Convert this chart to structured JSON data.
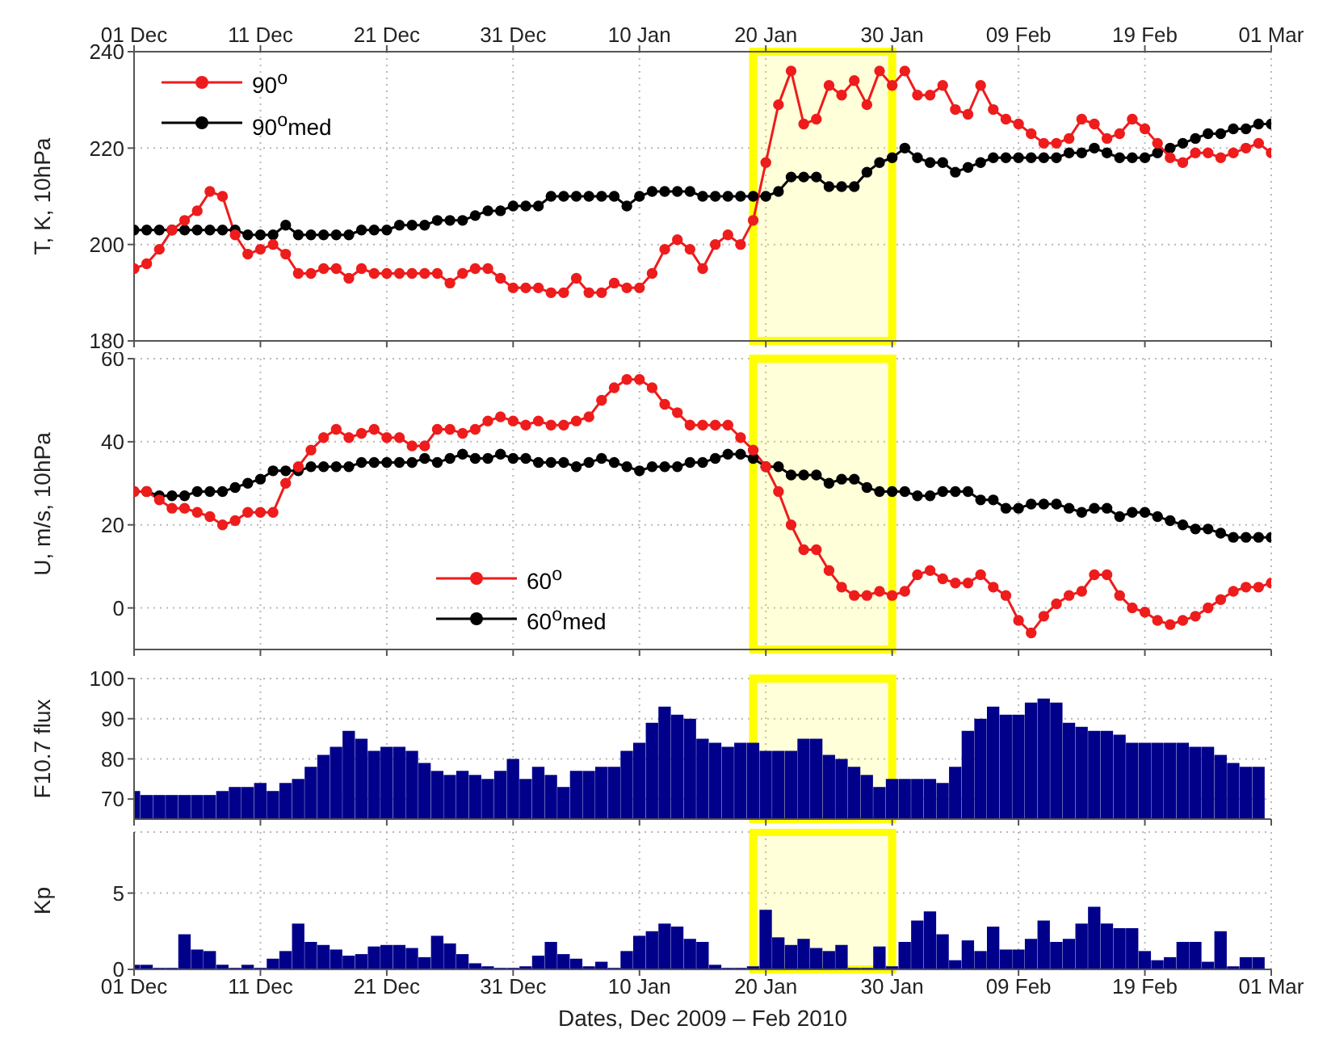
{
  "chart_data": [
    {
      "type": "line",
      "ylabel": "T, K, 10hPa",
      "grid": true,
      "marker": "circle",
      "legend": "top left",
      "tick_labels": "y",
      "x": [
        "2009-12-01",
        "2009-12-02",
        "2009-12-03",
        "2009-12-04",
        "2009-12-05",
        "2009-12-06",
        "2009-12-07",
        "2009-12-08",
        "2009-12-09",
        "2009-12-10",
        "2009-12-11",
        "2009-12-12",
        "2009-12-13",
        "2009-12-14",
        "2009-12-15",
        "2009-12-16",
        "2009-12-17",
        "2009-12-18",
        "2009-12-19",
        "2009-12-20",
        "2009-12-21",
        "2009-12-22",
        "2009-12-23",
        "2009-12-24",
        "2009-12-25",
        "2009-12-26",
        "2009-12-27",
        "2009-12-28",
        "2009-12-29",
        "2009-12-30",
        "2009-12-31",
        "2010-01-01",
        "2010-01-02",
        "2010-01-03",
        "2010-01-04",
        "2010-01-05",
        "2010-01-06",
        "2010-01-07",
        "2010-01-08",
        "2010-01-09",
        "2010-01-10",
        "2010-01-11",
        "2010-01-12",
        "2010-01-13",
        "2010-01-14",
        "2010-01-15",
        "2010-01-16",
        "2010-01-17",
        "2010-01-18",
        "2010-01-19",
        "2010-01-20",
        "2010-01-21",
        "2010-01-22",
        "2010-01-23",
        "2010-01-24",
        "2010-01-25",
        "2010-01-26",
        "2010-01-27",
        "2010-01-28",
        "2010-01-29",
        "2010-01-30",
        "2010-01-31",
        "2010-02-01",
        "2010-02-02",
        "2010-02-03",
        "2010-02-04",
        "2010-02-05",
        "2010-02-06",
        "2010-02-07",
        "2010-02-08",
        "2010-02-09",
        "2010-02-10",
        "2010-02-11",
        "2010-02-12",
        "2010-02-13",
        "2010-02-14",
        "2010-02-15",
        "2010-02-16",
        "2010-02-17",
        "2010-02-18",
        "2010-02-19",
        "2010-02-20",
        "2010-02-21",
        "2010-02-22",
        "2010-02-23",
        "2010-02-24",
        "2010-02-25",
        "2010-02-26",
        "2010-02-27",
        "2010-02-28",
        "2010-03-01"
      ],
      "series": [
        {
          "name": "90$^{o}$",
          "color": "#ee1c1c",
          "values": [
            195,
            196,
            199,
            203,
            205,
            207,
            211,
            210,
            202,
            198,
            199,
            200,
            198,
            194,
            194,
            195,
            195,
            193,
            195,
            194,
            194,
            194,
            194,
            194,
            194,
            192,
            194,
            195,
            195,
            193,
            191,
            191,
            191,
            190,
            190,
            193,
            190,
            190,
            192,
            191,
            191,
            194,
            199,
            201,
            199,
            195,
            200,
            202,
            200,
            205,
            217,
            229,
            236,
            225,
            226,
            233,
            231,
            234,
            229,
            236,
            233,
            236,
            231,
            231,
            233,
            228,
            227,
            233,
            228,
            226,
            225,
            223,
            221,
            221,
            222,
            226,
            225,
            222,
            223,
            226,
            224,
            221,
            218,
            217,
            219,
            219,
            218,
            219,
            220,
            221,
            219
          ]
        },
        {
          "name": "90$^{o}$med",
          "color": "#000000",
          "values": [
            203,
            203,
            203,
            203,
            203,
            203,
            203,
            203,
            203,
            202,
            202,
            202,
            204,
            202,
            202,
            202,
            202,
            202,
            203,
            203,
            203,
            204,
            204,
            204,
            205,
            205,
            205,
            206,
            207,
            207,
            208,
            208,
            208,
            210,
            210,
            210,
            210,
            210,
            210,
            208,
            210,
            211,
            211,
            211,
            211,
            210,
            210,
            210,
            210,
            210,
            210,
            211,
            214,
            214,
            214,
            212,
            212,
            212,
            215,
            217,
            218,
            220,
            218,
            217,
            217,
            215,
            216,
            217,
            218,
            218,
            218,
            218,
            218,
            218,
            219,
            219,
            220,
            219,
            218,
            218,
            218,
            219,
            220,
            221,
            222,
            223,
            223,
            224,
            224,
            225,
            225
          ]
        }
      ],
      "xlim": [
        "2009-12-01",
        "2010-03-01"
      ],
      "xticks": [
        {
          "value": "2009-12-01",
          "label": null
        },
        {
          "value": "2009-12-11",
          "label": null
        },
        {
          "value": "2009-12-21",
          "label": null
        },
        {
          "value": "2009-12-31",
          "label": null
        },
        {
          "value": "2010-01-10",
          "label": null
        },
        {
          "value": "2010-01-20",
          "label": null
        },
        {
          "value": "2010-01-30",
          "label": null
        },
        {
          "value": "2010-02-09",
          "label": null
        },
        {
          "value": "2010-02-19",
          "label": null
        },
        {
          "value": "2010-03-01",
          "label": null
        }
      ],
      "x2lim": [
        "2009-12-01",
        "2010-03-01"
      ],
      "x2ticks": [
        {
          "value": "2009-12-01",
          "label": "01 Dec"
        },
        {
          "value": "2009-12-11",
          "label": "11 Dec"
        },
        {
          "value": "2009-12-21",
          "label": "21 Dec"
        },
        {
          "value": "2009-12-31",
          "label": "31 Dec"
        },
        {
          "value": "2010-01-10",
          "label": "10 Jan"
        },
        {
          "value": "2010-01-20",
          "label": "20 Jan"
        },
        {
          "value": "2010-01-30",
          "label": "30 Jan"
        },
        {
          "value": "2010-02-09",
          "label": "09 Feb"
        },
        {
          "value": "2010-02-19",
          "label": "19 Feb"
        },
        {
          "value": "2010-03-01",
          "label": "01 Mar"
        }
      ],
      "ylim": [
        180,
        240
      ],
      "yticks": [
        180,
        200,
        220,
        240
      ],
      "bands": [
        {
          "axis": "x",
          "from": "2010-01-19",
          "to": "2010-01-30",
          "color": "#ffff00"
        }
      ]
    },
    {
      "type": "line",
      "ylabel": "U, m/s, 10hPa",
      "grid": true,
      "marker": "circle",
      "legend": "bottom left",
      "tick_labels": "y",
      "x": [
        "2009-12-01",
        "2009-12-02",
        "2009-12-03",
        "2009-12-04",
        "2009-12-05",
        "2009-12-06",
        "2009-12-07",
        "2009-12-08",
        "2009-12-09",
        "2009-12-10",
        "2009-12-11",
        "2009-12-12",
        "2009-12-13",
        "2009-12-14",
        "2009-12-15",
        "2009-12-16",
        "2009-12-17",
        "2009-12-18",
        "2009-12-19",
        "2009-12-20",
        "2009-12-21",
        "2009-12-22",
        "2009-12-23",
        "2009-12-24",
        "2009-12-25",
        "2009-12-26",
        "2009-12-27",
        "2009-12-28",
        "2009-12-29",
        "2009-12-30",
        "2009-12-31",
        "2010-01-01",
        "2010-01-02",
        "2010-01-03",
        "2010-01-04",
        "2010-01-05",
        "2010-01-06",
        "2010-01-07",
        "2010-01-08",
        "2010-01-09",
        "2010-01-10",
        "2010-01-11",
        "2010-01-12",
        "2010-01-13",
        "2010-01-14",
        "2010-01-15",
        "2010-01-16",
        "2010-01-17",
        "2010-01-18",
        "2010-01-19",
        "2010-01-20",
        "2010-01-21",
        "2010-01-22",
        "2010-01-23",
        "2010-01-24",
        "2010-01-25",
        "2010-01-26",
        "2010-01-27",
        "2010-01-28",
        "2010-01-29",
        "2010-01-30",
        "2010-01-31",
        "2010-02-01",
        "2010-02-02",
        "2010-02-03",
        "2010-02-04",
        "2010-02-05",
        "2010-02-06",
        "2010-02-07",
        "2010-02-08",
        "2010-02-09",
        "2010-02-10",
        "2010-02-11",
        "2010-02-12",
        "2010-02-13",
        "2010-02-14",
        "2010-02-15",
        "2010-02-16",
        "2010-02-17",
        "2010-02-18",
        "2010-02-19",
        "2010-02-20",
        "2010-02-21",
        "2010-02-22",
        "2010-02-23",
        "2010-02-24",
        "2010-02-25",
        "2010-02-26",
        "2010-02-27",
        "2010-02-28",
        "2010-03-01"
      ],
      "series": [
        {
          "name": "60$^{o}$",
          "color": "#ee1c1c",
          "values": [
            28,
            28,
            26,
            24,
            24,
            23,
            22,
            20,
            21,
            23,
            23,
            23,
            30,
            34,
            38,
            41,
            43,
            41,
            42,
            43,
            41,
            41,
            39,
            39,
            43,
            43,
            42,
            43,
            45,
            46,
            45,
            44,
            45,
            44,
            44,
            45,
            46,
            50,
            53,
            55,
            55,
            53,
            49,
            47,
            44,
            44,
            44,
            44,
            41,
            38,
            34,
            28,
            20,
            14,
            14,
            9,
            5,
            3,
            3,
            4,
            3,
            4,
            8,
            9,
            7,
            6,
            6,
            8,
            5,
            3,
            -3,
            -6,
            -2,
            1,
            3,
            4,
            8,
            8,
            3,
            0,
            -1,
            -3,
            -4,
            -3,
            -2,
            0,
            2,
            4,
            5,
            5,
            6
          ]
        },
        {
          "name": "60$^{o}$med",
          "color": "#000000",
          "values": [
            28,
            28,
            27,
            27,
            27,
            28,
            28,
            28,
            29,
            30,
            31,
            33,
            33,
            33,
            34,
            34,
            34,
            34,
            35,
            35,
            35,
            35,
            35,
            36,
            35,
            36,
            37,
            36,
            36,
            37,
            36,
            36,
            35,
            35,
            35,
            34,
            35,
            36,
            35,
            34,
            33,
            34,
            34,
            34,
            35,
            35,
            36,
            37,
            37,
            36,
            34,
            34,
            32,
            32,
            32,
            30,
            31,
            31,
            29,
            28,
            28,
            28,
            27,
            27,
            28,
            28,
            28,
            26,
            26,
            24,
            24,
            25,
            25,
            25,
            24,
            23,
            24,
            24,
            22,
            23,
            23,
            22,
            21,
            20,
            19,
            19,
            18,
            17,
            17,
            17,
            17
          ]
        }
      ],
      "xlim": [
        "2009-12-01",
        "2010-03-01"
      ],
      "xticks": [
        {
          "value": "2009-12-01",
          "label": null
        },
        {
          "value": "2009-12-11",
          "label": null
        },
        {
          "value": "2009-12-21",
          "label": null
        },
        {
          "value": "2009-12-31",
          "label": null
        },
        {
          "value": "2010-01-10",
          "label": null
        },
        {
          "value": "2010-01-20",
          "label": null
        },
        {
          "value": "2010-01-30",
          "label": null
        },
        {
          "value": "2010-02-09",
          "label": null
        },
        {
          "value": "2010-02-19",
          "label": null
        },
        {
          "value": "2010-03-01",
          "label": null
        }
      ],
      "ylim": [
        -10,
        60
      ],
      "yticks": [
        0,
        20,
        40,
        60
      ],
      "bands": [
        {
          "axis": "x",
          "from": "2010-01-19",
          "to": "2010-01-30",
          "color": "#ffff00"
        }
      ]
    },
    {
      "type": "bar",
      "ylabel": "F10.7 flux",
      "grid": true,
      "tick_labels": "y",
      "color": "#00008b",
      "x": [
        "2009-12-01",
        "2009-12-02",
        "2009-12-03",
        "2009-12-04",
        "2009-12-05",
        "2009-12-06",
        "2009-12-07",
        "2009-12-08",
        "2009-12-09",
        "2009-12-10",
        "2009-12-11",
        "2009-12-12",
        "2009-12-13",
        "2009-12-14",
        "2009-12-15",
        "2009-12-16",
        "2009-12-17",
        "2009-12-18",
        "2009-12-19",
        "2009-12-20",
        "2009-12-21",
        "2009-12-22",
        "2009-12-23",
        "2009-12-24",
        "2009-12-25",
        "2009-12-26",
        "2009-12-27",
        "2009-12-28",
        "2009-12-29",
        "2009-12-30",
        "2009-12-31",
        "2010-01-01",
        "2010-01-02",
        "2010-01-03",
        "2010-01-04",
        "2010-01-05",
        "2010-01-06",
        "2010-01-07",
        "2010-01-08",
        "2010-01-09",
        "2010-01-10",
        "2010-01-11",
        "2010-01-12",
        "2010-01-13",
        "2010-01-14",
        "2010-01-15",
        "2010-01-16",
        "2010-01-17",
        "2010-01-18",
        "2010-01-19",
        "2010-01-20",
        "2010-01-21",
        "2010-01-22",
        "2010-01-23",
        "2010-01-24",
        "2010-01-25",
        "2010-01-26",
        "2010-01-27",
        "2010-01-28",
        "2010-01-29",
        "2010-01-30",
        "2010-01-31",
        "2010-02-01",
        "2010-02-02",
        "2010-02-03",
        "2010-02-04",
        "2010-02-05",
        "2010-02-06",
        "2010-02-07",
        "2010-02-08",
        "2010-02-09",
        "2010-02-10",
        "2010-02-11",
        "2010-02-12",
        "2010-02-13",
        "2010-02-14",
        "2010-02-15",
        "2010-02-16",
        "2010-02-17",
        "2010-02-18",
        "2010-02-19",
        "2010-02-20",
        "2010-02-21",
        "2010-02-22",
        "2010-02-23",
        "2010-02-24",
        "2010-02-25",
        "2010-02-26",
        "2010-02-27",
        "2010-02-28"
      ],
      "values": [
        72,
        71,
        71,
        71,
        71,
        71,
        71,
        72,
        73,
        73,
        74,
        72,
        74,
        75,
        78,
        81,
        83,
        87,
        85,
        82,
        83,
        83,
        82,
        79,
        77,
        76,
        77,
        76,
        75,
        77,
        80,
        75,
        78,
        76,
        73,
        77,
        77,
        78,
        78,
        82,
        84,
        89,
        93,
        91,
        90,
        85,
        84,
        83,
        84,
        84,
        82,
        82,
        82,
        85,
        85,
        81,
        80,
        78,
        76,
        73,
        75,
        75,
        75,
        75,
        74,
        78,
        87,
        90,
        93,
        91,
        91,
        94,
        95,
        94,
        89,
        88,
        87,
        87,
        86,
        84,
        84,
        84,
        84,
        84,
        83,
        83,
        81,
        79,
        78,
        78
      ],
      "xlim": [
        "2009-12-01",
        "2010-03-01"
      ],
      "xticks": [
        {
          "value": "2009-12-01",
          "label": null
        },
        {
          "value": "2009-12-11",
          "label": null
        },
        {
          "value": "2009-12-21",
          "label": null
        },
        {
          "value": "2009-12-31",
          "label": null
        },
        {
          "value": "2010-01-10",
          "label": null
        },
        {
          "value": "2010-01-20",
          "label": null
        },
        {
          "value": "2010-01-30",
          "label": null
        },
        {
          "value": "2010-02-09",
          "label": null
        },
        {
          "value": "2010-02-19",
          "label": null
        },
        {
          "value": "2010-03-01",
          "label": null
        }
      ],
      "ylim": [
        65,
        100
      ],
      "yticks": [
        70,
        80,
        90,
        100
      ],
      "bands": [
        {
          "axis": "x",
          "from": "2010-01-19",
          "to": "2010-01-30",
          "color": "#ffff00"
        }
      ]
    },
    {
      "type": "bar",
      "ylabel": "Kp",
      "xlabel": "Dates, Dec 2009 – Feb 2010",
      "grid": true,
      "color": "#00008b",
      "x": [
        "2009-12-01",
        "2009-12-02",
        "2009-12-03",
        "2009-12-04",
        "2009-12-05",
        "2009-12-06",
        "2009-12-07",
        "2009-12-08",
        "2009-12-09",
        "2009-12-10",
        "2009-12-11",
        "2009-12-12",
        "2009-12-13",
        "2009-12-14",
        "2009-12-15",
        "2009-12-16",
        "2009-12-17",
        "2009-12-18",
        "2009-12-19",
        "2009-12-20",
        "2009-12-21",
        "2009-12-22",
        "2009-12-23",
        "2009-12-24",
        "2009-12-25",
        "2009-12-26",
        "2009-12-27",
        "2009-12-28",
        "2009-12-29",
        "2009-12-30",
        "2009-12-31",
        "2010-01-01",
        "2010-01-02",
        "2010-01-03",
        "2010-01-04",
        "2010-01-05",
        "2010-01-06",
        "2010-01-07",
        "2010-01-08",
        "2010-01-09",
        "2010-01-10",
        "2010-01-11",
        "2010-01-12",
        "2010-01-13",
        "2010-01-14",
        "2010-01-15",
        "2010-01-16",
        "2010-01-17",
        "2010-01-18",
        "2010-01-19",
        "2010-01-20",
        "2010-01-21",
        "2010-01-22",
        "2010-01-23",
        "2010-01-24",
        "2010-01-25",
        "2010-01-26",
        "2010-01-27",
        "2010-01-28",
        "2010-01-29",
        "2010-01-30",
        "2010-01-31",
        "2010-02-01",
        "2010-02-02",
        "2010-02-03",
        "2010-02-04",
        "2010-02-05",
        "2010-02-06",
        "2010-02-07",
        "2010-02-08",
        "2010-02-09",
        "2010-02-10",
        "2010-02-11",
        "2010-02-12",
        "2010-02-13",
        "2010-02-14",
        "2010-02-15",
        "2010-02-16",
        "2010-02-17",
        "2010-02-18",
        "2010-02-19",
        "2010-02-20",
        "2010-02-21",
        "2010-02-22",
        "2010-02-23",
        "2010-02-24",
        "2010-02-25",
        "2010-02-26",
        "2010-02-27",
        "2010-02-28"
      ],
      "values": [
        0.3,
        0.3,
        0.1,
        0.1,
        2.3,
        1.3,
        1.2,
        0.3,
        0.1,
        0.3,
        0.1,
        0.7,
        1.2,
        3.0,
        1.8,
        1.6,
        1.3,
        0.9,
        1.0,
        1.5,
        1.6,
        1.6,
        1.4,
        0.8,
        2.2,
        1.7,
        1.0,
        0.4,
        0.2,
        0.1,
        0.1,
        0.2,
        0.9,
        1.8,
        1.0,
        0.7,
        0.2,
        0.5,
        0.1,
        1.2,
        2.2,
        2.5,
        3.0,
        2.8,
        2.0,
        1.8,
        0.3,
        0.1,
        0.1,
        0.2,
        3.9,
        2.1,
        1.6,
        2.0,
        1.4,
        1.2,
        1.6,
        0.1,
        0.1,
        1.5,
        0.2,
        1.8,
        3.2,
        3.8,
        2.3,
        0.6,
        1.9,
        1.2,
        2.8,
        1.3,
        1.3,
        2.0,
        3.2,
        1.8,
        2.0,
        3.0,
        4.1,
        3.0,
        2.7,
        2.7,
        1.2,
        0.6,
        0.8,
        1.8,
        1.8,
        0.5,
        2.5,
        0.2,
        0.8,
        0.8
      ],
      "xlim": [
        "2009-12-01",
        "2010-03-01"
      ],
      "xticks": [
        {
          "value": "2009-12-01",
          "label": "01 Dec"
        },
        {
          "value": "2009-12-11",
          "label": "11 Dec"
        },
        {
          "value": "2009-12-21",
          "label": "21 Dec"
        },
        {
          "value": "2009-12-31",
          "label": "31 Dec"
        },
        {
          "value": "2010-01-10",
          "label": "10 Jan"
        },
        {
          "value": "2010-01-20",
          "label": "20 Jan"
        },
        {
          "value": "2010-01-30",
          "label": "30 Jan"
        },
        {
          "value": "2010-02-09",
          "label": "09 Feb"
        },
        {
          "value": "2010-02-19",
          "label": "19 Feb"
        },
        {
          "value": "2010-03-01",
          "label": "01 Mar"
        }
      ],
      "ylim": [
        0,
        9
      ],
      "yticks": [
        0,
        5
      ],
      "bands": [
        {
          "axis": "x",
          "from": "2010-01-19",
          "to": "2010-01-30",
          "color": "#ffff00"
        }
      ]
    }
  ]
}
